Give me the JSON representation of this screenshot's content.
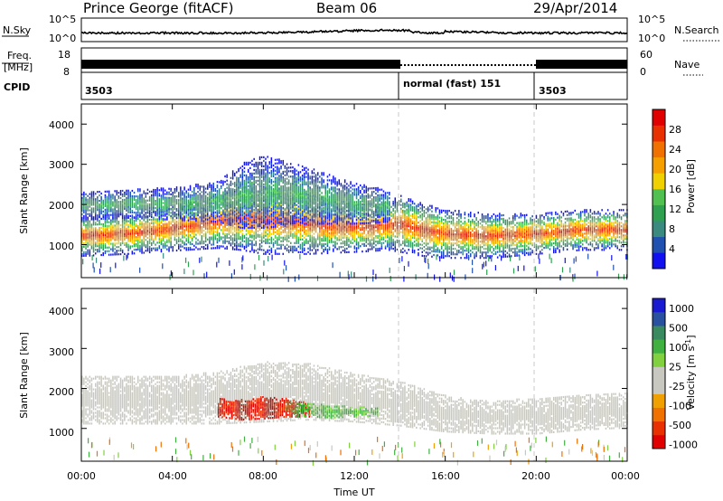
{
  "header": {
    "station": "Prince George (fitACF)",
    "beam": "Beam 06",
    "date": "29/Apr/2014"
  },
  "panels": {
    "nsky_label": "N.Sky",
    "nsky_ticks": [
      "10^5",
      "10^0"
    ],
    "nsearch_label": "N.Search",
    "nsearch_ticks": [
      "10^5",
      "10^0"
    ],
    "freq_label": "Freq.",
    "freq_unit": "[MHz]",
    "freq_ticks": [
      "18",
      "8"
    ],
    "nave_label": "Nave",
    "nave_ticks": [
      "60",
      "0"
    ],
    "cpid_label": "CPID",
    "cpid_segments": [
      {
        "start": "00:00",
        "end": "14:00",
        "label": "3503"
      },
      {
        "start": "14:00",
        "end": "20:00",
        "label": "normal (fast) 151"
      },
      {
        "start": "20:00",
        "end": "00:00",
        "label": "3503"
      }
    ]
  },
  "axes": {
    "xlabel": "Time UT",
    "x_ticks": [
      "00:00",
      "04:00",
      "08:00",
      "12:00",
      "16:00",
      "20:00",
      "00:00"
    ],
    "ylabel_prefix": "Slant Range ",
    "ylabel_unit": "[km]",
    "y_ticks": [
      "1000",
      "2000",
      "3000",
      "4000"
    ]
  },
  "colorbars": {
    "power_label_prefix": "Power ",
    "power_label_unit": "[dB]",
    "power_ticks": [
      "4",
      "8",
      "12",
      "16",
      "20",
      "24",
      "28"
    ],
    "power_colors": [
      "#1010f0",
      "#2050b0",
      "#3a8a80",
      "#2ea050",
      "#50c050",
      "#f0d000",
      "#f5a000",
      "#f07000",
      "#e83000",
      "#e00000"
    ],
    "velocity_label_prefix": "Velocity ",
    "velocity_label_unit": "[m s",
    "velocity_label_exp": "-1",
    "velocity_label_close": "]",
    "velocity_ticks": [
      "1000",
      "500",
      "100",
      "25",
      "-25",
      "-100",
      "-500",
      "-1000"
    ],
    "velocity_colors": [
      "#1a1ad0",
      "#2a50a0",
      "#3a8a60",
      "#40b040",
      "#80d040",
      "#c8c8c0",
      "#c8c8c0",
      "#f0a000",
      "#f07000",
      "#e83000",
      "#e00000"
    ]
  },
  "chart_data": [
    {
      "type": "heatmap",
      "title": "Power",
      "xlabel": "Time UT",
      "ylabel": "Slant Range [km]",
      "xlim": [
        0,
        24
      ],
      "ylim": [
        180,
        4500
      ],
      "zlabel": "Power [dB]",
      "zlim": [
        0,
        32
      ],
      "bands": [
        {
          "x": [
            0,
            2,
            4,
            6,
            7,
            8,
            10,
            12,
            13.5,
            14,
            15,
            16,
            18,
            20,
            21,
            22,
            24
          ],
          "center": [
            1200,
            1250,
            1380,
            1550,
            1650,
            1600,
            1500,
            1400,
            1450,
            1500,
            1350,
            1250,
            1200,
            1250,
            1300,
            1350,
            1350
          ],
          "width": [
            500,
            500,
            550,
            650,
            800,
            850,
            750,
            600,
            600,
            700,
            650,
            600,
            550,
            500,
            500,
            500,
            500
          ],
          "peak_db": 28
        },
        {
          "x": [
            0,
            2,
            4,
            6,
            7,
            8,
            10,
            12,
            13.5
          ],
          "center": [
            1950,
            2000,
            2000,
            2050,
            2200,
            2300,
            2200,
            2000,
            1950
          ],
          "width": [
            350,
            350,
            400,
            500,
            800,
            900,
            700,
            500,
            400
          ],
          "peak_db": 12
        }
      ]
    },
    {
      "type": "heatmap",
      "title": "Velocity",
      "xlabel": "Time UT",
      "ylabel": "Slant Range [km]",
      "xlim": [
        0,
        24
      ],
      "ylim": [
        180,
        4500
      ],
      "zlabel": "Velocity [m s-1]",
      "zlim": [
        -1000,
        1000
      ],
      "bands": [
        {
          "x": [
            0,
            4,
            6,
            8,
            10,
            12,
            14,
            16,
            18,
            20,
            22,
            24
          ],
          "center": [
            1700,
            1700,
            1750,
            1900,
            1900,
            1750,
            1600,
            1350,
            1250,
            1300,
            1400,
            1450
          ],
          "width": [
            1200,
            1200,
            1300,
            1500,
            1400,
            1200,
            1100,
            900,
            800,
            900,
            900,
            900
          ],
          "velocity": 0
        },
        {
          "x": [
            6,
            7,
            8,
            9,
            10
          ],
          "center": [
            1500,
            1450,
            1500,
            1500,
            1450
          ],
          "width": [
            450,
            500,
            550,
            450,
            350
          ],
          "velocity": -700
        },
        {
          "x": [
            9,
            10,
            11,
            12,
            13
          ],
          "center": [
            1500,
            1450,
            1400,
            1400,
            1400
          ],
          "width": [
            400,
            350,
            300,
            250,
            200
          ],
          "velocity": 200
        }
      ]
    }
  ]
}
